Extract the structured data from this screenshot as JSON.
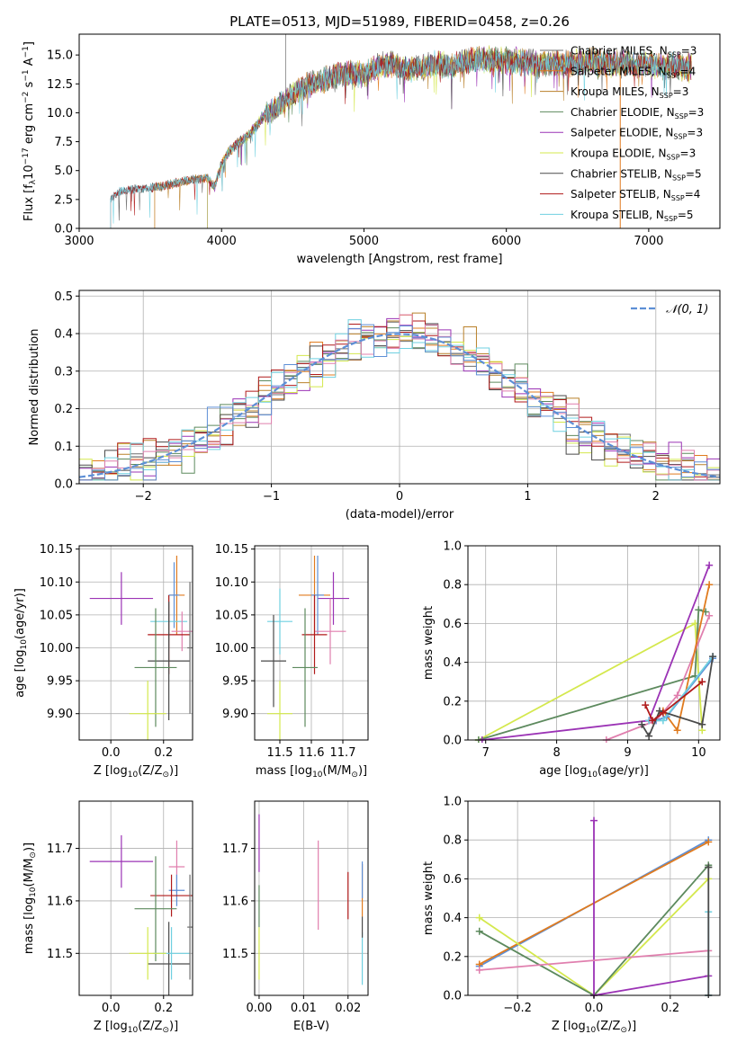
{
  "title": "PLATE=0513, MJD=51989, FIBERID=0458, z=0.26",
  "colors": {
    "c0": "#6f6f6f",
    "c1": "#e07b1f",
    "c2": "#b9812a",
    "c3": "#5d8a5e",
    "c4": "#9b33b5",
    "c5": "#d4e84d",
    "c6": "#4a4a4a",
    "c7": "#b01a1a",
    "c8": "#6fd0e0",
    "pink": "#e07fae",
    "blue": "#5d8fd6",
    "green": "#5d8a5e"
  },
  "chart_data": [
    {
      "id": "spectrum",
      "type": "line",
      "xlabel": "wavelength [Angstrom, rest frame]",
      "ylabel_pre": "Flux [f",
      "ylabel_post": "10",
      "ylabel_exp": "−17",
      "ylabel_tail": " erg cm",
      "xlim": [
        3000,
        7500
      ],
      "ylim": [
        0,
        16.8
      ],
      "xticks": [
        "3000",
        "4000",
        "5000",
        "6000",
        "7000"
      ],
      "xtick_values": [
        3000,
        4000,
        5000,
        6000,
        7000
      ],
      "yticks": [
        "0.0",
        "2.5",
        "5.0",
        "7.5",
        "10.0",
        "12.5",
        "15.0"
      ],
      "ytick_values": [
        0,
        2.5,
        5,
        7.5,
        10,
        12.5,
        15
      ],
      "grid": false,
      "legend_position": "top-right",
      "series": [
        {
          "name": "Chabrier MILES, N",
          "sub": "SSP",
          "suffix": "=3",
          "color": "#6f6f6f",
          "start": 3220
        },
        {
          "name": "Salpeter MILES, N",
          "sub": "SSP",
          "suffix": "=4",
          "color": "#e07b1f",
          "start": 3530
        },
        {
          "name": "Kroupa MILES, N",
          "sub": "SSP",
          "suffix": "=3",
          "color": "#b9812a",
          "start": 3530
        },
        {
          "name": "Chabrier ELODIE, N",
          "sub": "SSP",
          "suffix": "=3",
          "color": "#5d8a5e",
          "start": 3900
        },
        {
          "name": "Salpeter ELODIE, N",
          "sub": "SSP",
          "suffix": "=3",
          "color": "#9b33b5",
          "start": 3900
        },
        {
          "name": "Kroupa ELODIE, N",
          "sub": "SSP",
          "suffix": "=3",
          "color": "#d4e84d",
          "start": 3900
        },
        {
          "name": "Chabrier STELIB, N",
          "sub": "SSP",
          "suffix": "=5",
          "color": "#4a4a4a",
          "start": 3220
        },
        {
          "name": "Salpeter STELIB, N",
          "sub": "SSP",
          "suffix": "=4",
          "color": "#b01a1a",
          "start": 3220
        },
        {
          "name": "Kroupa STELIB, N",
          "sub": "SSP",
          "suffix": "=5",
          "color": "#6fd0e0",
          "start": 3220
        }
      ],
      "envelope": {
        "x": [
          3220,
          3260,
          3300,
          3400,
          3500,
          3600,
          3700,
          3800,
          3900,
          3950,
          4000,
          4050,
          4100,
          4200,
          4300,
          4400,
          4500,
          4600,
          4700,
          4800,
          4900,
          5000,
          5100,
          5200,
          5300,
          5400,
          5500,
          5600,
          5700,
          5800,
          5900,
          6000,
          6100,
          6200,
          6300,
          6400,
          6500,
          6600,
          6700,
          6800,
          6900,
          7000,
          7100,
          7200,
          7300
        ],
        "y": [
          2.5,
          3.0,
          3.3,
          3.4,
          3.5,
          3.7,
          4.0,
          4.2,
          4.4,
          3.6,
          5.6,
          6.6,
          7.2,
          8.2,
          9.8,
          10.6,
          11.6,
          12.4,
          12.8,
          13.2,
          13.4,
          13.3,
          14.0,
          14.3,
          13.7,
          13.9,
          14.2,
          14.0,
          14.3,
          14.7,
          14.5,
          14.6,
          14.4,
          14.2,
          14.3,
          14.2,
          14.3,
          14.4,
          14.3,
          14.3,
          14.2,
          14.3,
          14.0,
          14.1,
          13.9
        ]
      }
    },
    {
      "id": "residual_hist",
      "type": "histogram",
      "xlabel": "(data-model)/error",
      "ylabel": "Normed distribution",
      "xlim": [
        -2.5,
        2.5
      ],
      "ylim": [
        0,
        0.515
      ],
      "xticks": [
        "−2",
        "−1",
        "0",
        "1",
        "2"
      ],
      "xtick_values": [
        -2,
        -1,
        0,
        1,
        2
      ],
      "yticks": [
        "0.0",
        "0.1",
        "0.2",
        "0.3",
        "0.4",
        "0.5"
      ],
      "ytick_values": [
        0,
        0.1,
        0.2,
        0.3,
        0.4,
        0.5
      ],
      "grid": true,
      "legend_position": "top-right",
      "legend_label": "𝒩(0, 1)",
      "bin_edges_start": -2.5,
      "bin_width": 0.1,
      "gaussian": {
        "mean": 0,
        "sigma": 1,
        "color": "#5d8fd6"
      }
    },
    {
      "id": "age_vs_Z",
      "type": "errorbar",
      "xlabel": "Z [log",
      "xlabel_sub": "10",
      "xlabel_tail": "(Z/Z",
      "xlabel_end": ")]",
      "ylabel": "age  [log",
      "ylabel_sub": "10",
      "ylabel_tail": "(age/yr)]",
      "xlim": [
        -0.12,
        0.31
      ],
      "ylim": [
        9.86,
        10.155
      ],
      "xticks": [
        "0.0",
        "0.2"
      ],
      "xtick_values": [
        0,
        0.2
      ],
      "yticks": [
        "9.90",
        "9.95",
        "10.00",
        "10.05",
        "10.10",
        "10.15"
      ],
      "ytick_values": [
        9.9,
        9.95,
        10.0,
        10.05,
        10.1,
        10.15
      ],
      "grid": true,
      "points": [
        {
          "x": 0.04,
          "xerr": 0.12,
          "y": 10.075,
          "yerr": 0.04,
          "color": "#9b33b5"
        },
        {
          "x": 0.25,
          "xerr": 0.03,
          "y": 10.08,
          "yerr": 0.06,
          "color": "#e07b1f"
        },
        {
          "x": 0.24,
          "xerr": 0.02,
          "y": 10.08,
          "yerr": 0.05,
          "color": "#5d8fd6"
        },
        {
          "x": 0.22,
          "xerr": 0.07,
          "y": 10.04,
          "yerr": 0.04,
          "color": "#6fd0e0"
        },
        {
          "x": 0.27,
          "xerr": 0.04,
          "y": 10.025,
          "yerr": 0.03,
          "color": "#e07fae"
        },
        {
          "x": 0.22,
          "xerr": 0.08,
          "y": 10.02,
          "yerr": 0.06,
          "color": "#b01a1a"
        },
        {
          "x": 0.22,
          "xerr": 0.08,
          "y": 9.98,
          "yerr": 0.09,
          "color": "#4a4a4a"
        },
        {
          "x": 0.17,
          "xerr": 0.08,
          "y": 9.97,
          "yerr": 0.09,
          "color": "#5d8a5e"
        },
        {
          "x": 0.3,
          "xerr": 0.01,
          "y": 10.0,
          "yerr": 0.1,
          "color": "#6f6f6f"
        },
        {
          "x": 0.14,
          "xerr": 0.07,
          "y": 9.9,
          "yerr": 0.05,
          "color": "#d4e84d"
        }
      ]
    },
    {
      "id": "age_vs_mass",
      "type": "errorbar",
      "xlabel": "mass [log",
      "xlabel_sub": "10",
      "xlabel_tail": "(M/M",
      "xlabel_end": ")]",
      "xlim": [
        11.42,
        11.78
      ],
      "ylim": [
        9.86,
        10.155
      ],
      "xticks": [
        "11.5",
        "11.6",
        "11.7"
      ],
      "xtick_values": [
        11.5,
        11.6,
        11.7
      ],
      "yticks": [
        "9.90",
        "9.95",
        "10.00",
        "10.05",
        "10.10",
        "10.15"
      ],
      "ytick_values": [
        9.9,
        9.95,
        10.0,
        10.05,
        10.1,
        10.15
      ],
      "grid": true,
      "points": [
        {
          "x": 11.67,
          "xerr": 0.05,
          "y": 10.075,
          "yerr": 0.04,
          "color": "#9b33b5"
        },
        {
          "x": 11.61,
          "xerr": 0.05,
          "y": 10.08,
          "yerr": 0.06,
          "color": "#e07b1f"
        },
        {
          "x": 11.62,
          "xerr": 0.02,
          "y": 10.08,
          "yerr": 0.06,
          "color": "#5d8fd6"
        },
        {
          "x": 11.5,
          "xerr": 0.04,
          "y": 10.04,
          "yerr": 0.05,
          "color": "#6fd0e0"
        },
        {
          "x": 11.66,
          "xerr": 0.05,
          "y": 10.025,
          "yerr": 0.05,
          "color": "#e07fae"
        },
        {
          "x": 11.61,
          "xerr": 0.04,
          "y": 10.02,
          "yerr": 0.06,
          "color": "#b01a1a"
        },
        {
          "x": 11.48,
          "xerr": 0.04,
          "y": 9.98,
          "yerr": 0.07,
          "color": "#4a4a4a"
        },
        {
          "x": 11.58,
          "xerr": 0.04,
          "y": 9.97,
          "yerr": 0.09,
          "color": "#5d8a5e"
        },
        {
          "x": 11.5,
          "xerr": 0.04,
          "y": 9.9,
          "yerr": 0.05,
          "color": "#d4e84d"
        }
      ]
    },
    {
      "id": "weight_vs_age",
      "type": "line",
      "xlabel": "age  [log",
      "xlabel_sub": "10",
      "xlabel_tail": "(age/yr)]",
      "ylabel": "mass weight",
      "xlim": [
        6.75,
        10.3
      ],
      "ylim": [
        0,
        1
      ],
      "xticks": [
        "7",
        "8",
        "9",
        "10"
      ],
      "xtick_values": [
        7,
        8,
        9,
        10
      ],
      "yticks": [
        "0.0",
        "0.2",
        "0.4",
        "0.6",
        "0.8",
        "1.0"
      ],
      "ytick_values": [
        0,
        0.2,
        0.4,
        0.6,
        0.8,
        1.0
      ],
      "grid": true,
      "series": [
        {
          "color": "#d4e84d",
          "x": [
            6.9,
            9.95,
            10.05
          ],
          "y": [
            0.0,
            0.6,
            0.05
          ]
        },
        {
          "color": "#5d8a5e",
          "x": [
            6.9,
            9.95,
            10.0,
            10.1
          ],
          "y": [
            0.0,
            0.33,
            0.67,
            0.66
          ]
        },
        {
          "color": "#9b33b5",
          "x": [
            6.95,
            9.3,
            10.15
          ],
          "y": [
            0.0,
            0.1,
            0.9
          ]
        },
        {
          "color": "#e07fae",
          "x": [
            8.7,
            9.4,
            9.7,
            10.15
          ],
          "y": [
            0.0,
            0.1,
            0.23,
            0.64
          ]
        },
        {
          "color": "#e07b1f",
          "x": [
            9.5,
            9.7,
            10.15
          ],
          "y": [
            0.15,
            0.05,
            0.8
          ]
        },
        {
          "color": "#5d8fd6",
          "x": [
            9.4,
            9.55,
            10.2
          ],
          "y": [
            0.1,
            0.12,
            0.42
          ]
        },
        {
          "color": "#6fd0e0",
          "x": [
            9.3,
            9.5,
            10.2
          ],
          "y": [
            0.1,
            0.1,
            0.43
          ]
        },
        {
          "color": "#4a4a4a",
          "x": [
            9.2,
            9.3,
            9.45,
            10.05,
            10.2
          ],
          "y": [
            0.08,
            0.02,
            0.15,
            0.08,
            0.43
          ]
        },
        {
          "color": "#b01a1a",
          "x": [
            9.25,
            9.35,
            9.5,
            10.05
          ],
          "y": [
            0.18,
            0.1,
            0.14,
            0.3
          ]
        }
      ]
    },
    {
      "id": "mass_vs_Z",
      "type": "errorbar",
      "xlabel": "Z [log",
      "xlabel_sub": "10",
      "xlabel_tail": "(Z/Z",
      "xlabel_end": ")]",
      "ylabel": "mass [log",
      "ylabel_sub": "10",
      "ylabel_tail": "(M/M",
      "ylabel_end": ")]",
      "xlim": [
        -0.12,
        0.31
      ],
      "ylim": [
        11.42,
        11.79
      ],
      "xticks": [
        "0.0",
        "0.2"
      ],
      "xtick_values": [
        0,
        0.2
      ],
      "yticks": [
        "11.5",
        "11.6",
        "11.7"
      ],
      "ytick_values": [
        11.5,
        11.6,
        11.7
      ],
      "grid": true,
      "points": [
        {
          "x": 0.04,
          "xerr": 0.12,
          "y": 11.675,
          "yerr": 0.05,
          "color": "#9b33b5"
        },
        {
          "x": 0.25,
          "xerr": 0.03,
          "y": 11.665,
          "yerr": 0.05,
          "color": "#e07fae"
        },
        {
          "x": 0.25,
          "xerr": 0.03,
          "y": 11.62,
          "yerr": 0.03,
          "color": "#5d8fd6"
        },
        {
          "x": 0.23,
          "xerr": 0.08,
          "y": 11.61,
          "yerr": 0.04,
          "color": "#b01a1a"
        },
        {
          "x": 0.17,
          "xerr": 0.08,
          "y": 11.585,
          "yerr": 0.1,
          "color": "#5d8a5e"
        },
        {
          "x": 0.22,
          "xerr": 0.08,
          "y": 11.48,
          "yerr": 0.08,
          "color": "#4a4a4a"
        },
        {
          "x": 0.23,
          "xerr": 0.07,
          "y": 11.5,
          "yerr": 0.05,
          "color": "#6fd0e0"
        },
        {
          "x": 0.14,
          "xerr": 0.07,
          "y": 11.5,
          "yerr": 0.05,
          "color": "#d4e84d"
        },
        {
          "x": 0.3,
          "xerr": 0.01,
          "y": 11.55,
          "yerr": 0.1,
          "color": "#6f6f6f"
        }
      ]
    },
    {
      "id": "mass_vs_ebv",
      "type": "errorbar",
      "xlabel": "E(B-V)",
      "xlim": [
        -0.001,
        0.0245
      ],
      "ylim": [
        11.42,
        11.79
      ],
      "xticks": [
        "0.00",
        "0.01",
        "0.02"
      ],
      "xtick_values": [
        0,
        0.01,
        0.02
      ],
      "yticks": [
        "11.5",
        "11.6",
        "11.7"
      ],
      "ytick_values": [
        11.5,
        11.6,
        11.7
      ],
      "grid": true,
      "points": [
        {
          "x": 0.0,
          "xerr": 0,
          "y": 11.71,
          "yerr": 0.055,
          "color": "#9b33b5"
        },
        {
          "x": 0.0,
          "xerr": 0,
          "y": 11.5,
          "yerr": 0.05,
          "color": "#d4e84d"
        },
        {
          "x": 0.0,
          "xerr": 0,
          "y": 11.59,
          "yerr": 0.04,
          "color": "#5d8a5e"
        },
        {
          "x": 0.0133,
          "xerr": 0,
          "y": 11.63,
          "yerr": 0.085,
          "color": "#e07fae"
        },
        {
          "x": 0.02,
          "xerr": 0,
          "y": 11.61,
          "yerr": 0.045,
          "color": "#b01a1a"
        },
        {
          "x": 0.0232,
          "xerr": 0,
          "y": 11.62,
          "yerr": 0.05,
          "color": "#e07b1f"
        },
        {
          "x": 0.0232,
          "xerr": 0,
          "y": 11.64,
          "yerr": 0.035,
          "color": "#5d8fd6"
        },
        {
          "x": 0.0232,
          "xerr": 0,
          "y": 11.49,
          "yerr": 0.05,
          "color": "#6fd0e0"
        },
        {
          "x": 0.0232,
          "xerr": 0,
          "y": 11.55,
          "yerr": 0.02,
          "color": "#4a4a4a"
        }
      ]
    },
    {
      "id": "weight_vs_Z",
      "type": "line",
      "xlabel": "Z [log",
      "xlabel_sub": "10",
      "xlabel_tail": "(Z/Z",
      "xlabel_end": ")]",
      "ylabel": "mass weight",
      "xlim": [
        -0.33,
        0.33
      ],
      "ylim": [
        0,
        1
      ],
      "xticks": [
        "−0.2",
        "0.0",
        "0.2"
      ],
      "xtick_values": [
        -0.2,
        0,
        0.2
      ],
      "yticks": [
        "0.0",
        "0.2",
        "0.4",
        "0.6",
        "0.8",
        "1.0"
      ],
      "ytick_values": [
        0,
        0.2,
        0.4,
        0.6,
        0.8,
        1.0
      ],
      "grid": true,
      "series": [
        {
          "color": "#5d8fd6",
          "x": [
            -0.3,
            0.3
          ],
          "y": [
            0.15,
            0.8
          ]
        },
        {
          "color": "#e07b1f",
          "x": [
            -0.3,
            0.3
          ],
          "y": [
            0.16,
            0.79
          ]
        },
        {
          "color": "#d4e84d",
          "x": [
            -0.3,
            0.0,
            0.3
          ],
          "y": [
            0.4,
            0.0,
            0.6
          ]
        },
        {
          "color": "#5d8a5e",
          "x": [
            -0.3,
            0.0,
            0.3,
            0.3
          ],
          "y": [
            0.33,
            0.0,
            0.67,
            0.66
          ]
        },
        {
          "color": "#9b33b5",
          "x": [
            0.0,
            0.0,
            0.3
          ],
          "y": [
            0.9,
            0.0,
            0.1
          ]
        },
        {
          "color": "#e07fae",
          "x": [
            -0.3,
            0.3
          ],
          "y": [
            0.13,
            0.23
          ]
        },
        {
          "color": "#6fd0e0",
          "x": [
            0.3,
            0.3
          ],
          "y": [
            0.0,
            0.43
          ]
        },
        {
          "color": "#4a4a4a",
          "x": [
            0.3,
            0.3
          ],
          "y": [
            0.0,
            0.66
          ]
        }
      ]
    }
  ]
}
